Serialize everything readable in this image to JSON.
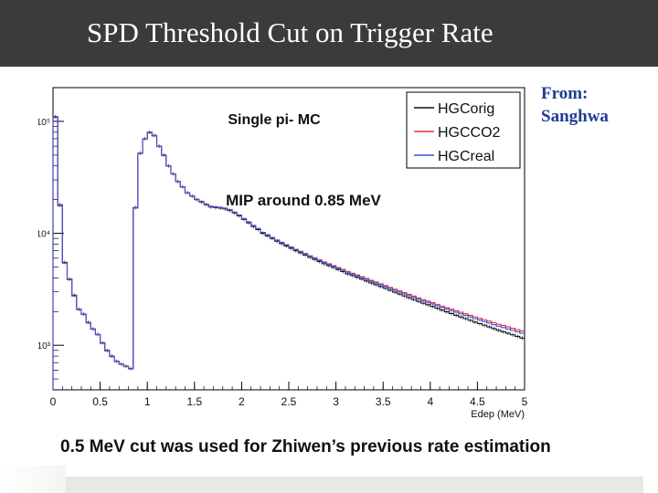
{
  "slide": {
    "title": "SPD Threshold Cut on Trigger Rate",
    "credit_line1": "From:",
    "credit_line2": "Sanghwa",
    "bottom_note": "0.5 MeV cut was used for Zhiwen’s previous rate estimation"
  },
  "chart_data": {
    "type": "line",
    "style": "step-histogram",
    "title": "Single pi- MC",
    "annotation": "MIP around 0.85 MeV",
    "xlabel": "Edep (MeV)",
    "ylabel": "",
    "yscale": "log",
    "xlim": [
      0,
      5
    ],
    "ylim": [
      400,
      200000
    ],
    "x_ticks": [
      0,
      0.5,
      1,
      1.5,
      2,
      2.5,
      3,
      3.5,
      4,
      4.5,
      5
    ],
    "x_tick_labels": [
      "0",
      "0.5",
      "1",
      "1.5",
      "2",
      "2.5",
      "3",
      "3.5",
      "4",
      "4.5",
      "5"
    ],
    "y_ticks": [
      1000,
      10000,
      100000
    ],
    "y_tick_labels": [
      "10³",
      "10⁴",
      "10⁵"
    ],
    "legend_position": "top-right",
    "bin_width": 0.05,
    "series": [
      {
        "name": "HGCorig",
        "color": "#111111",
        "values": [
          110000,
          18000,
          5500,
          3900,
          2800,
          2100,
          1900,
          1600,
          1400,
          1250,
          1050,
          900,
          800,
          720,
          680,
          650,
          620,
          17000,
          52000,
          70000,
          80000,
          75000,
          60000,
          50000,
          40000,
          34000,
          29000,
          26000,
          23000,
          21500,
          20000,
          19000,
          18000,
          17200,
          17000,
          16800,
          16500,
          16000,
          15200,
          14300,
          13300,
          12400,
          11500,
          10800,
          10000,
          9500,
          9000,
          8500,
          8100,
          7700,
          7350,
          7000,
          6700,
          6400,
          6100,
          5850,
          5600,
          5350,
          5150,
          4950,
          4750,
          4550,
          4350,
          4200,
          4050,
          3900,
          3750,
          3600,
          3480,
          3350,
          3230,
          3100,
          2980,
          2870,
          2760,
          2660,
          2560,
          2470,
          2380,
          2300,
          2220,
          2140,
          2060,
          1990,
          1920,
          1850,
          1790,
          1730,
          1670,
          1610,
          1560,
          1510,
          1460,
          1410,
          1360,
          1320,
          1280,
          1240,
          1200,
          1160
        ]
      },
      {
        "name": "HGCCO2",
        "color": "#e0303a",
        "values": [
          108000,
          17500,
          5400,
          3850,
          2750,
          2080,
          1880,
          1580,
          1390,
          1240,
          1040,
          890,
          790,
          715,
          675,
          645,
          615,
          16800,
          51500,
          69500,
          79000,
          74000,
          59500,
          49500,
          39800,
          33800,
          28900,
          25900,
          23000,
          21500,
          20100,
          19200,
          18200,
          17400,
          17200,
          17000,
          16700,
          16200,
          15400,
          14500,
          13500,
          12600,
          11700,
          11000,
          10200,
          9700,
          9200,
          8700,
          8300,
          7900,
          7550,
          7200,
          6900,
          6600,
          6300,
          6050,
          5800,
          5550,
          5350,
          5150,
          4950,
          4750,
          4560,
          4400,
          4250,
          4100,
          3950,
          3800,
          3670,
          3540,
          3410,
          3290,
          3170,
          3060,
          2950,
          2850,
          2750,
          2650,
          2560,
          2480,
          2400,
          2320,
          2240,
          2170,
          2100,
          2030,
          1970,
          1910,
          1850,
          1790,
          1740,
          1690,
          1640,
          1590,
          1540,
          1500,
          1460,
          1420,
          1380,
          1340
        ]
      },
      {
        "name": "HGCreal",
        "color": "#3a55d8",
        "values": [
          109000,
          17800,
          5450,
          3880,
          2780,
          2090,
          1890,
          1590,
          1395,
          1245,
          1045,
          895,
          795,
          718,
          678,
          648,
          618,
          16900,
          51800,
          69800,
          79500,
          74500,
          59800,
          49800,
          39900,
          33900,
          28950,
          25950,
          23000,
          21600,
          20150,
          19250,
          18250,
          17450,
          17250,
          17050,
          16750,
          16250,
          15450,
          14550,
          13550,
          12650,
          11750,
          11000,
          10200,
          9650,
          9150,
          8650,
          8250,
          7850,
          7480,
          7130,
          6830,
          6530,
          6230,
          5980,
          5730,
          5480,
          5280,
          5080,
          4880,
          4680,
          4490,
          4330,
          4180,
          4030,
          3880,
          3730,
          3600,
          3470,
          3350,
          3220,
          3100,
          2990,
          2880,
          2780,
          2680,
          2590,
          2500,
          2420,
          2340,
          2260,
          2180,
          2110,
          2040,
          1970,
          1910,
          1850,
          1790,
          1730,
          1680,
          1630,
          1580,
          1530,
          1480,
          1440,
          1400,
          1360,
          1320,
          1280
        ]
      }
    ]
  }
}
